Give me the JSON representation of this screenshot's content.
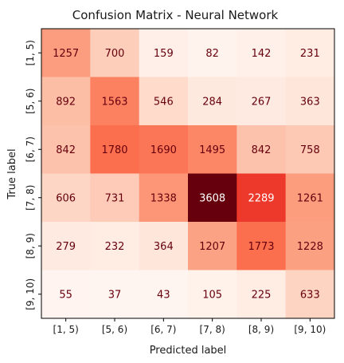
{
  "chart_data": {
    "type": "heatmap",
    "title": "Confusion Matrix - Neural Network",
    "xlabel": "Predicted label",
    "ylabel": "True label",
    "x_categories": [
      "[1, 5)",
      "[5, 6)",
      "[6, 7)",
      "[7, 8)",
      "[8, 9)",
      "[9, 10)"
    ],
    "y_categories": [
      "[1, 5)",
      "[5, 6)",
      "[6, 7)",
      "[7, 8)",
      "[8, 9)",
      "[9, 10)"
    ],
    "values": [
      [
        1257,
        700,
        159,
        82,
        142,
        231
      ],
      [
        892,
        1563,
        546,
        284,
        267,
        363
      ],
      [
        842,
        1780,
        1690,
        1495,
        842,
        758
      ],
      [
        606,
        731,
        1338,
        3608,
        2289,
        1261
      ],
      [
        279,
        232,
        364,
        1207,
        1773,
        1228
      ],
      [
        55,
        37,
        43,
        105,
        225,
        633
      ]
    ],
    "colormap": "Reds",
    "value_range": [
      37,
      3608
    ],
    "label_colors": {
      "dark_cell": "#ffffff",
      "light_cell": "#67000d"
    }
  }
}
